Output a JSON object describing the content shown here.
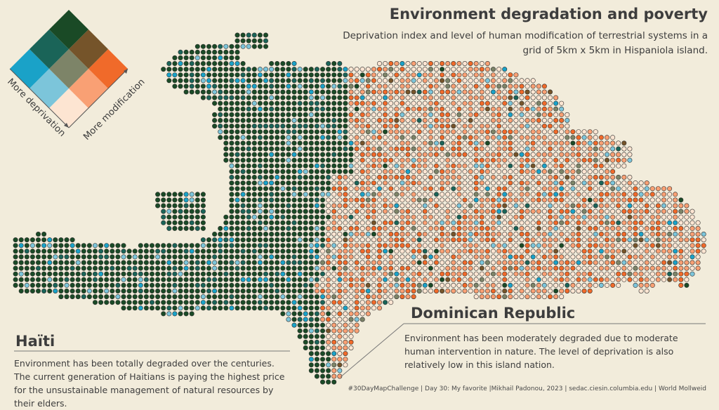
{
  "header": {
    "title": "Environment degradation and poverty",
    "subtitle": "Deprivation index and level of human modification of terrestrial systems in a grid of 5km x 5km in Hispaniola island."
  },
  "legend": {
    "axis_deprivation": "More deprivation",
    "axis_modification": "More modification",
    "colors": [
      [
        "#fde5d2",
        "#f9a074",
        "#f06a2a"
      ],
      [
        "#7cc5da",
        "#7d8468",
        "#75542a"
      ],
      [
        "#1aa2c8",
        "#1a6458",
        "#1a4a26"
      ]
    ]
  },
  "regions": {
    "haiti": {
      "name": "Haïti",
      "description": "Environment has been totally degraded over the centuries. The current generation of Haitians is paying the highest price for the unsustainable management of natural resources by their elders."
    },
    "dominican_republic": {
      "name": "Dominican Republic",
      "description": "Environment has been moderately degraded due to moderate human intervention in nature. The level of deprivation is also relatively low in this island nation."
    }
  },
  "footer": {
    "credits": "#30DayMapChallenge | Day 30: My favorite |Mikhail Padonou, 2023 | sedac.ciesin.columbia.edu | World Mollweid"
  }
}
